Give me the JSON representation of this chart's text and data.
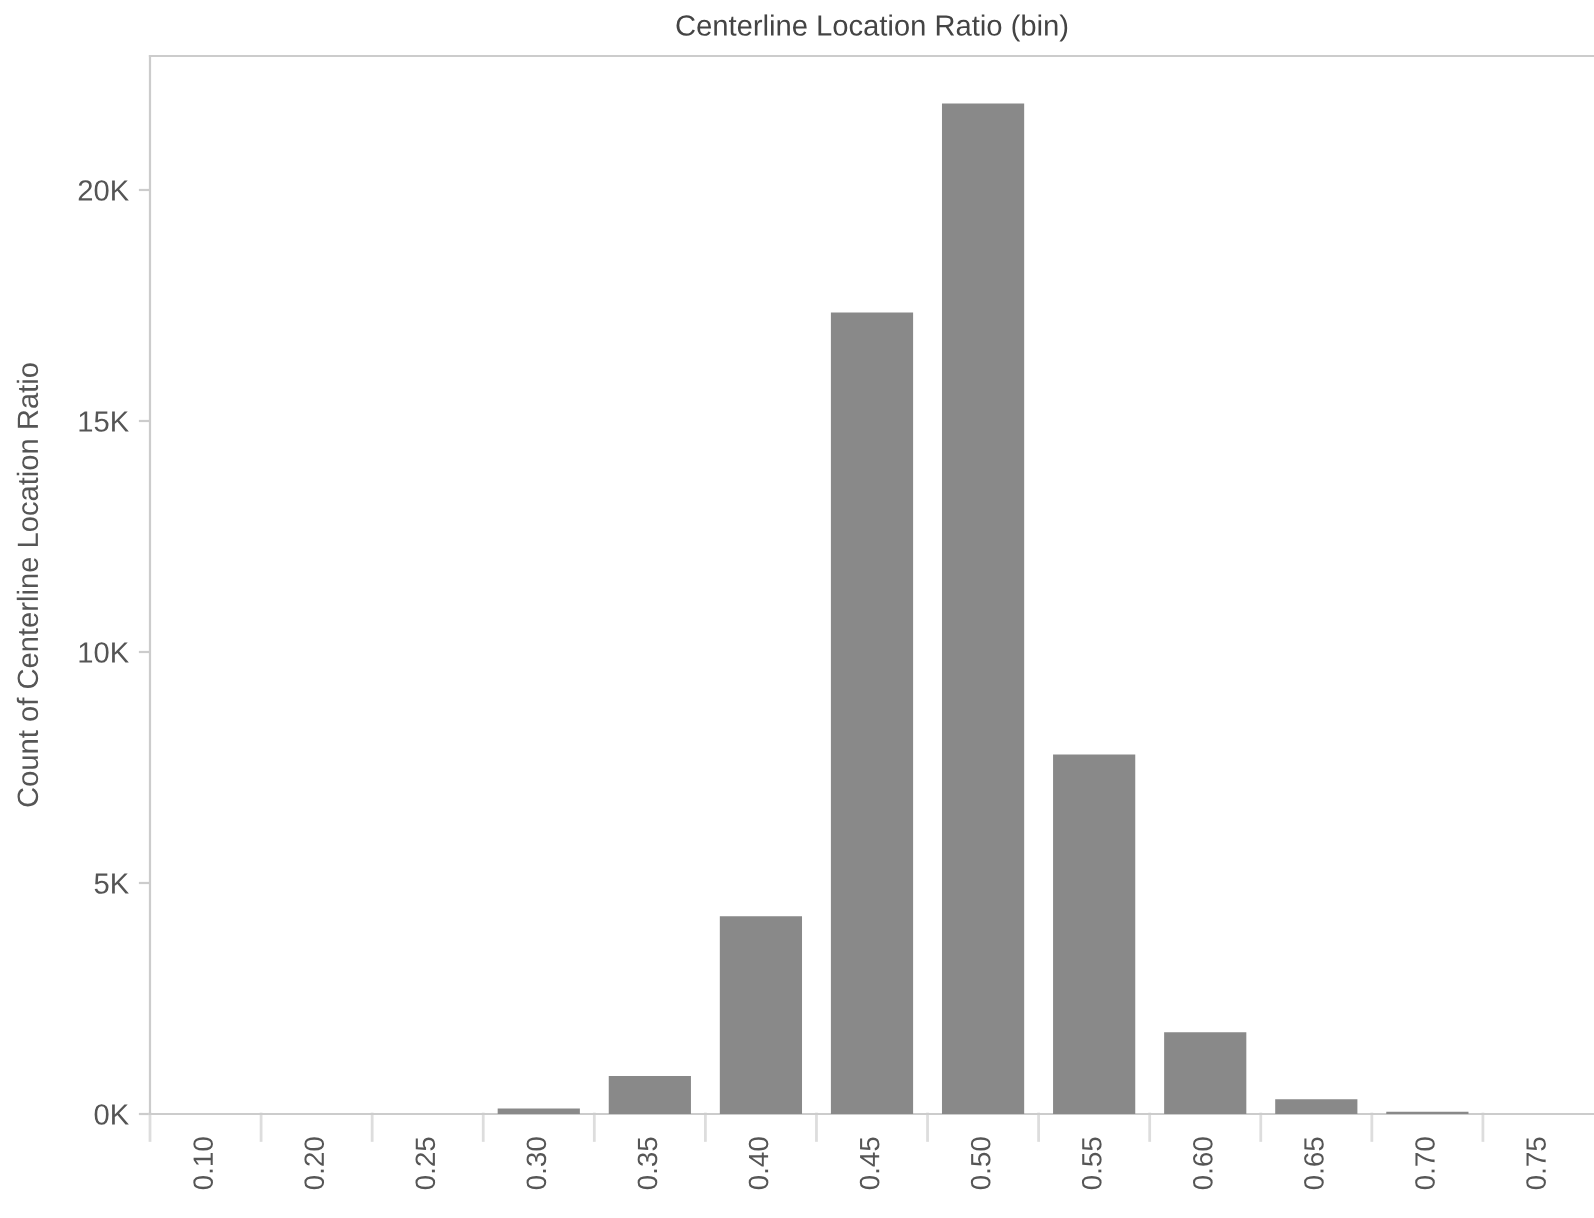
{
  "chart_data": {
    "type": "bar",
    "title": "Centerline Location Ratio (bin)",
    "ylabel": "Count of Centerline Location Ratio",
    "categories": [
      "0.10",
      "0.20",
      "0.25",
      "0.30",
      "0.35",
      "0.40",
      "0.45",
      "0.50",
      "0.55",
      "0.60",
      "0.65",
      "0.70",
      "0.75"
    ],
    "values": [
      0,
      0,
      0,
      120,
      820,
      4280,
      17350,
      21870,
      7780,
      1770,
      320,
      50,
      0
    ],
    "color": "#898989",
    "ylim": [
      0,
      22900
    ],
    "yticks": [
      {
        "value": 0,
        "label": "0K"
      },
      {
        "value": 5000,
        "label": "5K"
      },
      {
        "value": 10000,
        "label": "10K"
      },
      {
        "value": 15000,
        "label": "15K"
      },
      {
        "value": 20000,
        "label": "20K"
      }
    ],
    "grid": false
  }
}
